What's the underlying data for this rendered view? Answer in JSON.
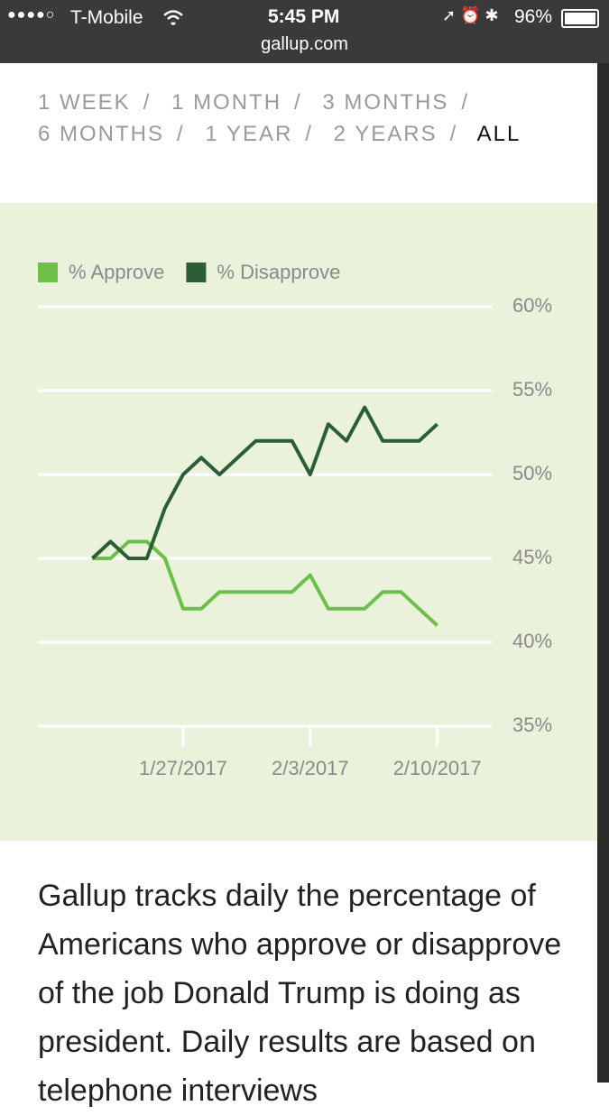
{
  "status_bar": {
    "carrier": "T-Mobile",
    "time": "5:45 PM",
    "battery": "96%",
    "url": "gallup.com"
  },
  "range_nav": {
    "items": [
      "1 WEEK",
      "1 MONTH",
      "3 MONTHS",
      "6 MONTHS",
      "1 YEAR",
      "2 YEARS",
      "ALL"
    ],
    "separator": "/",
    "selected": "ALL"
  },
  "chart_data": {
    "type": "line",
    "x": [
      "2017-01-22",
      "2017-01-23",
      "2017-01-24",
      "2017-01-25",
      "2017-01-26",
      "2017-01-27",
      "2017-01-28",
      "2017-01-29",
      "2017-01-30",
      "2017-01-31",
      "2017-02-01",
      "2017-02-02",
      "2017-02-03",
      "2017-02-04",
      "2017-02-05",
      "2017-02-06",
      "2017-02-07",
      "2017-02-08",
      "2017-02-09",
      "2017-02-10"
    ],
    "series": [
      {
        "name": "% Approve",
        "color": "#6cc04a",
        "values": [
          45,
          45,
          46,
          46,
          45,
          42,
          42,
          43,
          43,
          43,
          43,
          43,
          44,
          42,
          42,
          42,
          43,
          43,
          42,
          41
        ]
      },
      {
        "name": "% Disapprove",
        "color": "#2b5e34",
        "values": [
          45,
          46,
          45,
          45,
          48,
          50,
          51,
          50,
          51,
          52,
          52,
          52,
          50,
          53,
          52,
          54,
          52,
          52,
          52,
          53
        ]
      }
    ],
    "xlim": [
      "2017-01-19",
      "2017-02-13"
    ],
    "xticks": [
      {
        "value": "2017-01-27",
        "label": "1/27/2017"
      },
      {
        "value": "2017-02-03",
        "label": "2/3/2017"
      },
      {
        "value": "2017-02-10",
        "label": "2/10/2017"
      }
    ],
    "ylim": [
      35,
      60
    ],
    "yticks": [
      {
        "value": 35,
        "label": "35%"
      },
      {
        "value": 40,
        "label": "40%"
      },
      {
        "value": 45,
        "label": "45%"
      },
      {
        "value": 50,
        "label": "50%"
      },
      {
        "value": 55,
        "label": "55%"
      },
      {
        "value": 60,
        "label": "60%"
      }
    ],
    "grid": true,
    "legend": "top-left",
    "background": "#eaf2dc"
  },
  "description": "Gallup tracks daily the percentage of Americans who approve or disapprove of the job Donald Trump is doing as president. Daily results are based on telephone interviews"
}
